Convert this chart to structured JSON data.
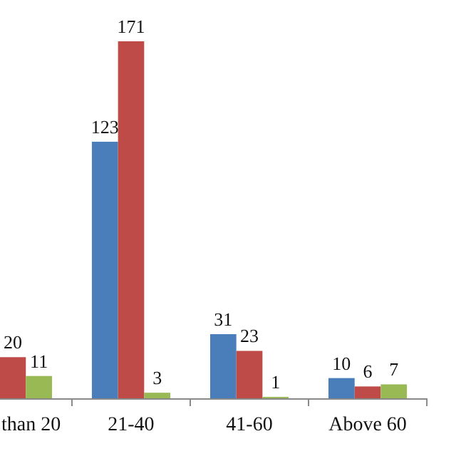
{
  "chart_data": {
    "type": "bar",
    "categories": [
      "than 20",
      "21-40",
      "41-60",
      "Above 60"
    ],
    "series": [
      {
        "color": "#4a7ebb",
        "values": [
          null,
          123,
          31,
          10
        ]
      },
      {
        "color": "#be4b48",
        "values": [
          20,
          171,
          23,
          6
        ]
      },
      {
        "color": "#98b954",
        "values": [
          11,
          3,
          1,
          7
        ]
      }
    ],
    "data_labels": true
  }
}
